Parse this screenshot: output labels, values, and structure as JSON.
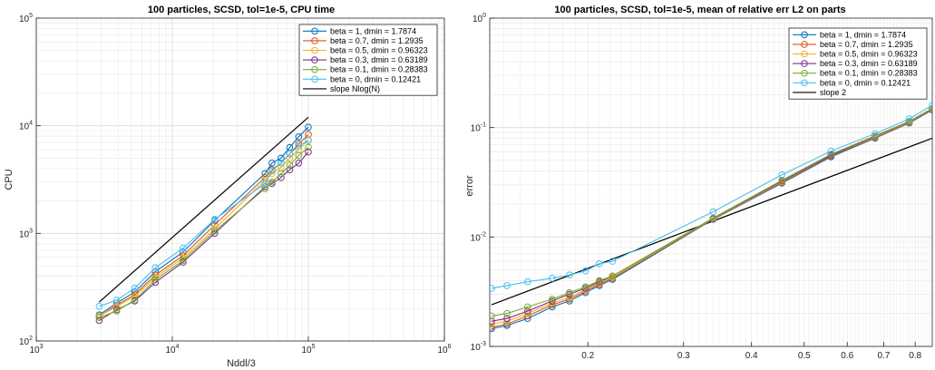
{
  "colors": {
    "series": [
      "#0072BD",
      "#D95319",
      "#EDB120",
      "#7E2F8E",
      "#77AC30",
      "#4DBEEE"
    ],
    "reference": "#000000",
    "grid_major": "#d9d9d9",
    "grid_minor": "#ececec",
    "axes": "#262626"
  },
  "chart_data": [
    {
      "type": "line",
      "title": "100 particles, SCSD, tol=1e-5, CPU time",
      "xlabel": "Nddl/3",
      "ylabel": "CPU",
      "xscale": "log",
      "yscale": "log",
      "xlim": [
        1000,
        1000000
      ],
      "ylim": [
        100,
        100000
      ],
      "grid": "on (major and minor)",
      "legend_position": "top-right",
      "x_ticks": [
        {
          "base": "10",
          "exp": "3"
        },
        {
          "base": "10",
          "exp": "4"
        },
        {
          "base": "10",
          "exp": "5"
        },
        {
          "base": "10",
          "exp": "6"
        }
      ],
      "y_ticks": [
        {
          "base": "10",
          "exp": "2"
        },
        {
          "base": "10",
          "exp": "3"
        },
        {
          "base": "10",
          "exp": "4"
        },
        {
          "base": "10",
          "exp": "5"
        }
      ],
      "x": [
        2900,
        3900,
        5300,
        7500,
        12000,
        20500,
        48000,
        54000,
        63000,
        73000,
        85000,
        100000
      ],
      "series": [
        {
          "name": "beta = 1, dmin = 1.7874",
          "values": [
            175,
            225,
            285,
            440,
            670,
            1320,
            3600,
            4500,
            5000,
            6300,
            7900,
            9700
          ]
        },
        {
          "name": "beta = 0.7, dmin = 1.2935",
          "values": [
            170,
            215,
            270,
            410,
            620,
            1200,
            3300,
            3900,
            4500,
            5500,
            6800,
            8300
          ]
        },
        {
          "name": "beta = 0.5, dmin = 0.96323",
          "values": [
            170,
            210,
            260,
            390,
            590,
            1100,
            3100,
            3600,
            4100,
            5000,
            6000,
            7400
          ]
        },
        {
          "name": "beta = 0.3, dmin = 0.63189",
          "values": [
            155,
            195,
            235,
            350,
            540,
            1000,
            2700,
            2900,
            3300,
            3900,
            4500,
            5700
          ]
        },
        {
          "name": "beta = 0.1, dmin = 0.28383",
          "values": [
            165,
            190,
            240,
            370,
            560,
            1050,
            2600,
            3000,
            3600,
            4300,
            5300,
            6300
          ]
        },
        {
          "name": "beta = 0, dmin = 0.12421",
          "values": [
            210,
            240,
            310,
            480,
            730,
            1350,
            2900,
            3800,
            4500,
            5500,
            6500,
            7300
          ]
        }
      ],
      "reference": {
        "name": "slope Nlog(N)",
        "x": [
          2900,
          100000
        ],
        "values": [
          230,
          12000
        ]
      }
    },
    {
      "type": "line",
      "title": "100 particles, SCSD, tol=1e-5, mean of relative err L2 on parts",
      "xlabel": "",
      "ylabel": "error",
      "xscale": "log",
      "yscale": "log",
      "xlim": [
        0.132,
        0.86
      ],
      "ylim": [
        0.001,
        1
      ],
      "grid": "on (major and minor)",
      "legend_position": "top-right",
      "x_ticks": [
        {
          "value": 0.2,
          "label": "0.2"
        },
        {
          "value": 0.3,
          "label": "0.3"
        },
        {
          "value": 0.4,
          "label": "0.4"
        },
        {
          "value": 0.5,
          "label": "0.5"
        },
        {
          "value": 0.6,
          "label": "0.6"
        },
        {
          "value": 0.7,
          "label": "0.7"
        },
        {
          "value": 0.8,
          "label": "0.8"
        }
      ],
      "y_ticks": [
        {
          "base": "10",
          "exp": "-3"
        },
        {
          "base": "10",
          "exp": "-2"
        },
        {
          "base": "10",
          "exp": "-1"
        },
        {
          "base": "10",
          "exp": "0"
        }
      ],
      "x": [
        0.133,
        0.142,
        0.155,
        0.172,
        0.185,
        0.198,
        0.21,
        0.222,
        0.34,
        0.455,
        0.56,
        0.675,
        0.78,
        0.86
      ],
      "series": [
        {
          "name": "beta = 1, dmin = 1.7874",
          "values": [
            0.00145,
            0.00155,
            0.0018,
            0.0023,
            0.0026,
            0.0031,
            0.0036,
            0.0041,
            0.0145,
            0.031,
            0.054,
            0.08,
            0.11,
            0.145
          ]
        },
        {
          "name": "beta = 0.7, dmin = 1.2935",
          "values": [
            0.0015,
            0.0016,
            0.0019,
            0.0024,
            0.0027,
            0.0032,
            0.0037,
            0.0042,
            0.0146,
            0.0315,
            0.055,
            0.081,
            0.111,
            0.147
          ]
        },
        {
          "name": "beta = 0.5, dmin = 0.96323",
          "values": [
            0.0016,
            0.0017,
            0.002,
            0.0025,
            0.0028,
            0.0033,
            0.0038,
            0.0043,
            0.0147,
            0.032,
            0.056,
            0.082,
            0.112,
            0.148
          ]
        },
        {
          "name": "beta = 0.3, dmin = 0.63189",
          "values": [
            0.0017,
            0.0018,
            0.0021,
            0.0026,
            0.003,
            0.0034,
            0.0039,
            0.0044,
            0.0148,
            0.0325,
            0.056,
            0.083,
            0.113,
            0.149
          ]
        },
        {
          "name": "beta = 0.1, dmin = 0.28383",
          "values": [
            0.0019,
            0.002,
            0.0023,
            0.0027,
            0.0031,
            0.0035,
            0.004,
            0.0044,
            0.0149,
            0.033,
            0.057,
            0.084,
            0.114,
            0.15
          ]
        },
        {
          "name": "beta = 0, dmin = 0.12421",
          "values": [
            0.0034,
            0.0036,
            0.0039,
            0.0042,
            0.0045,
            0.0049,
            0.0057,
            0.006,
            0.017,
            0.037,
            0.061,
            0.088,
            0.12,
            0.16
          ]
        }
      ],
      "reference": {
        "name": "slope 2",
        "x": [
          0.133,
          0.86
        ],
        "values": [
          0.0024,
          0.08
        ]
      }
    }
  ]
}
